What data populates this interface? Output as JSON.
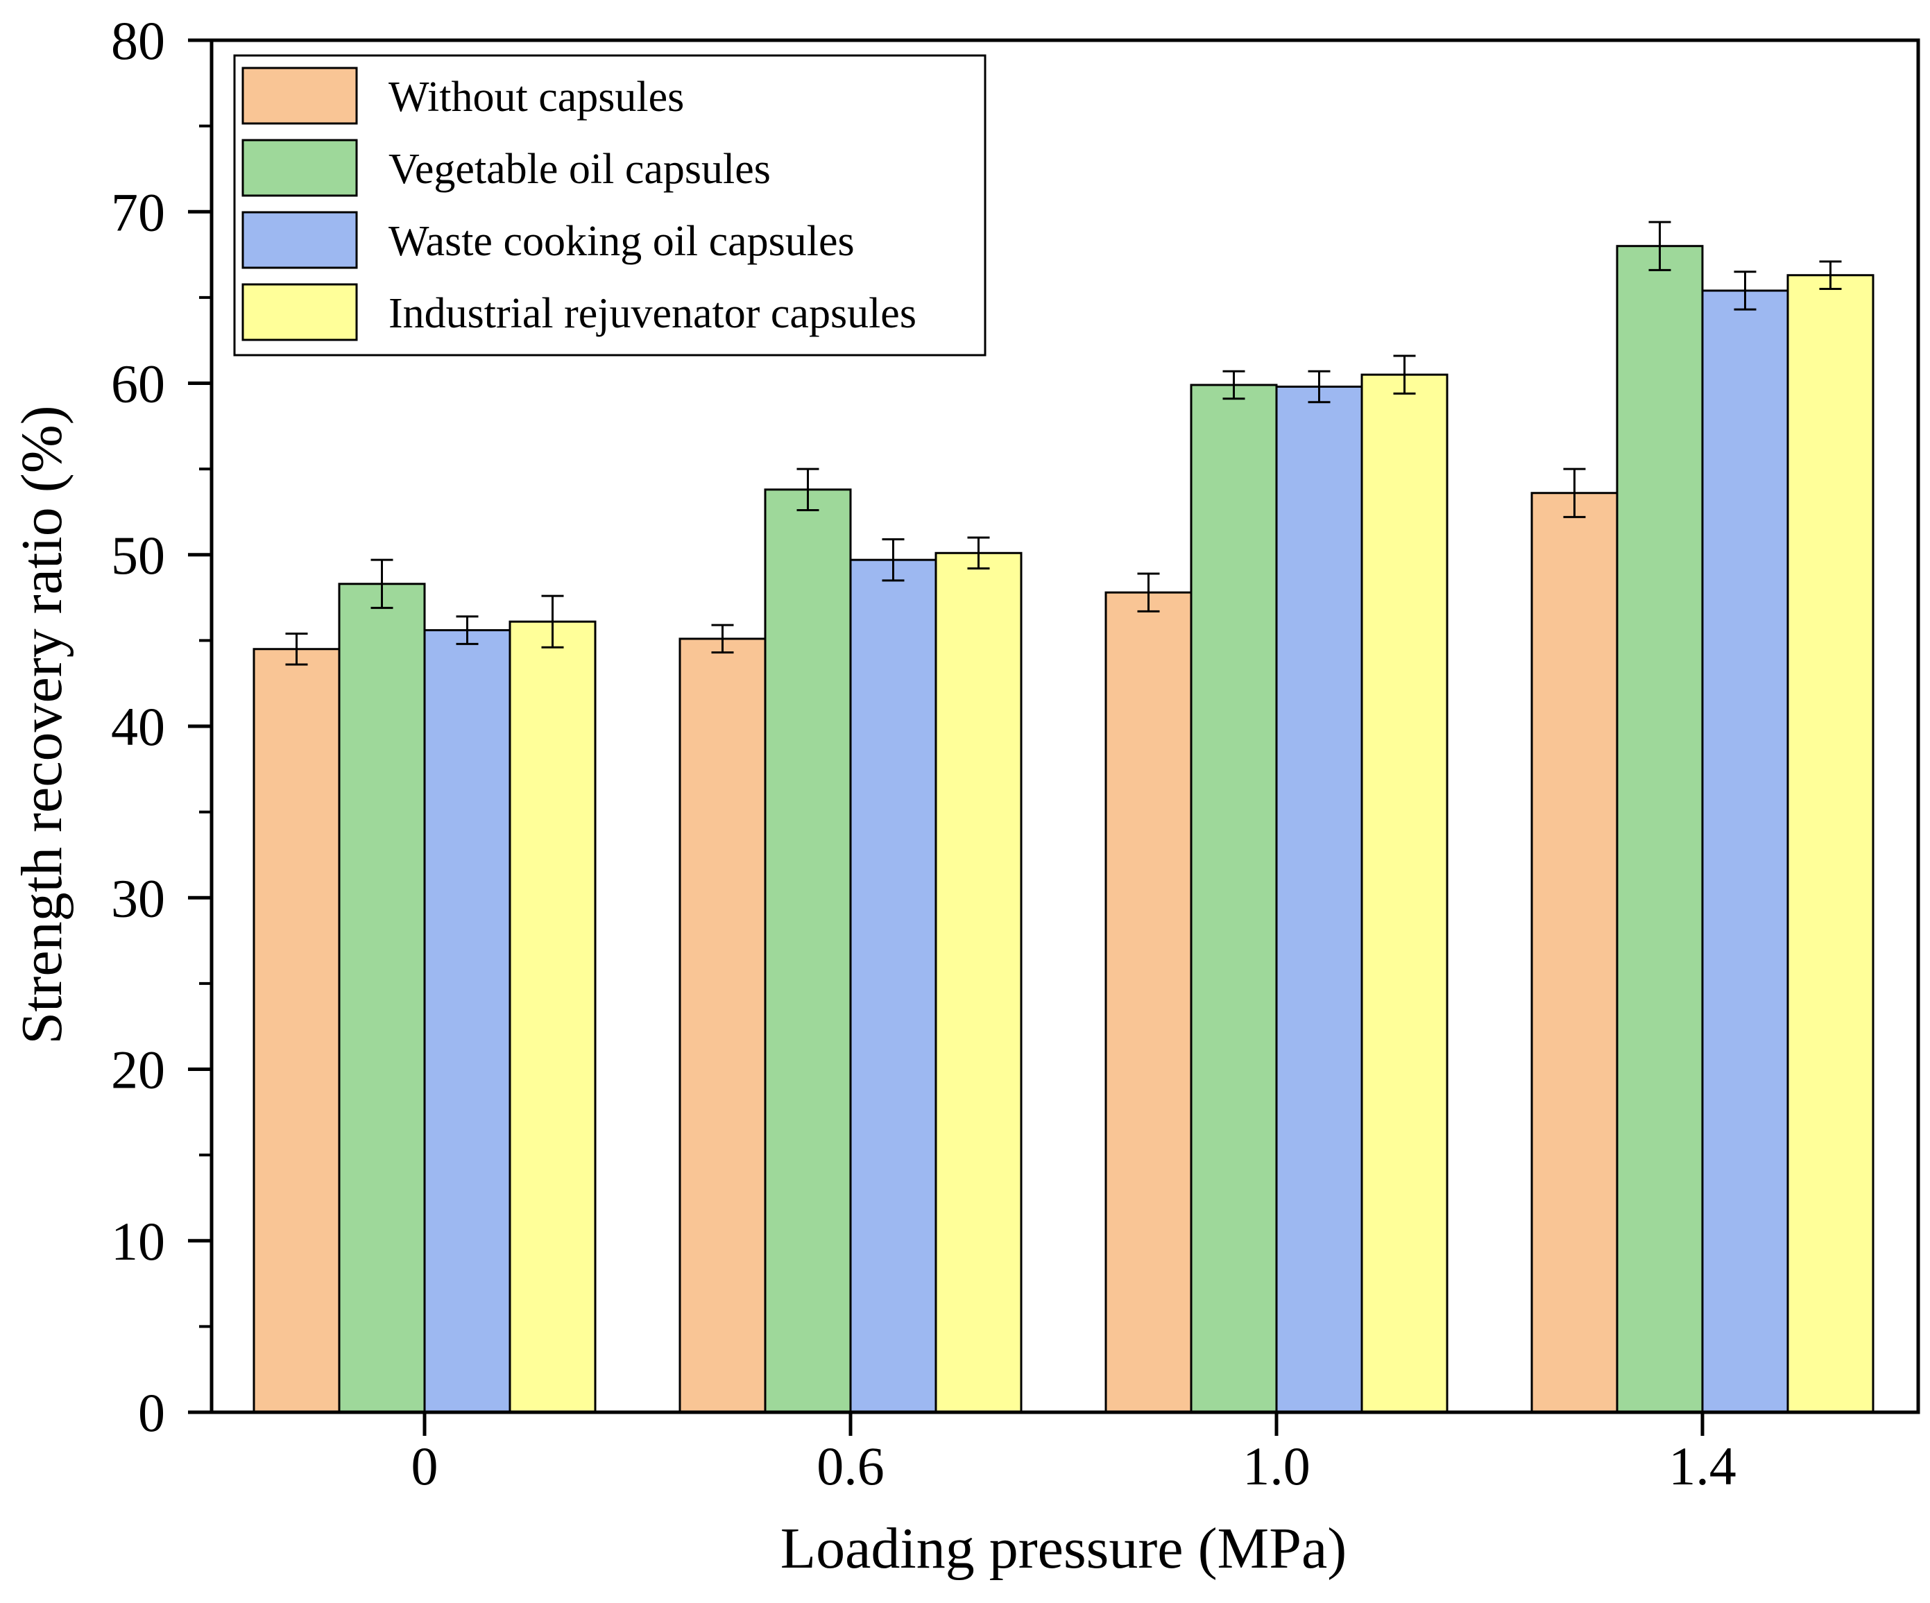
{
  "chart_data": {
    "type": "bar",
    "title": "",
    "xlabel": "Loading pressure (MPa)",
    "ylabel": "Strength recovery ratio (%)",
    "ylim": [
      0,
      80
    ],
    "yticks": [
      "0",
      "10",
      "20",
      "30",
      "40",
      "50",
      "60",
      "70",
      "80"
    ],
    "categories": [
      "0",
      "0.6",
      "1.0",
      "1.4"
    ],
    "legend_position": "top-left",
    "series": [
      {
        "name": "Without capsules",
        "color": "#f9c595",
        "values": [
          44.5,
          45.1,
          47.8,
          53.6
        ],
        "errors": [
          0.9,
          0.8,
          1.1,
          1.4
        ]
      },
      {
        "name": "Vegetable oil capsules",
        "color": "#9ed89a",
        "values": [
          48.3,
          53.8,
          59.9,
          68.0
        ],
        "errors": [
          1.4,
          1.2,
          0.8,
          1.4
        ]
      },
      {
        "name": "Waste cooking oil capsules",
        "color": "#9db8f1",
        "values": [
          45.6,
          49.7,
          59.8,
          65.4
        ],
        "errors": [
          0.8,
          1.2,
          0.9,
          1.1
        ]
      },
      {
        "name": "Industrial rejuvenator capsules",
        "color": "#ffff99",
        "values": [
          46.1,
          50.1,
          60.5,
          66.3
        ],
        "errors": [
          1.5,
          0.9,
          1.1,
          0.8
        ]
      }
    ]
  }
}
